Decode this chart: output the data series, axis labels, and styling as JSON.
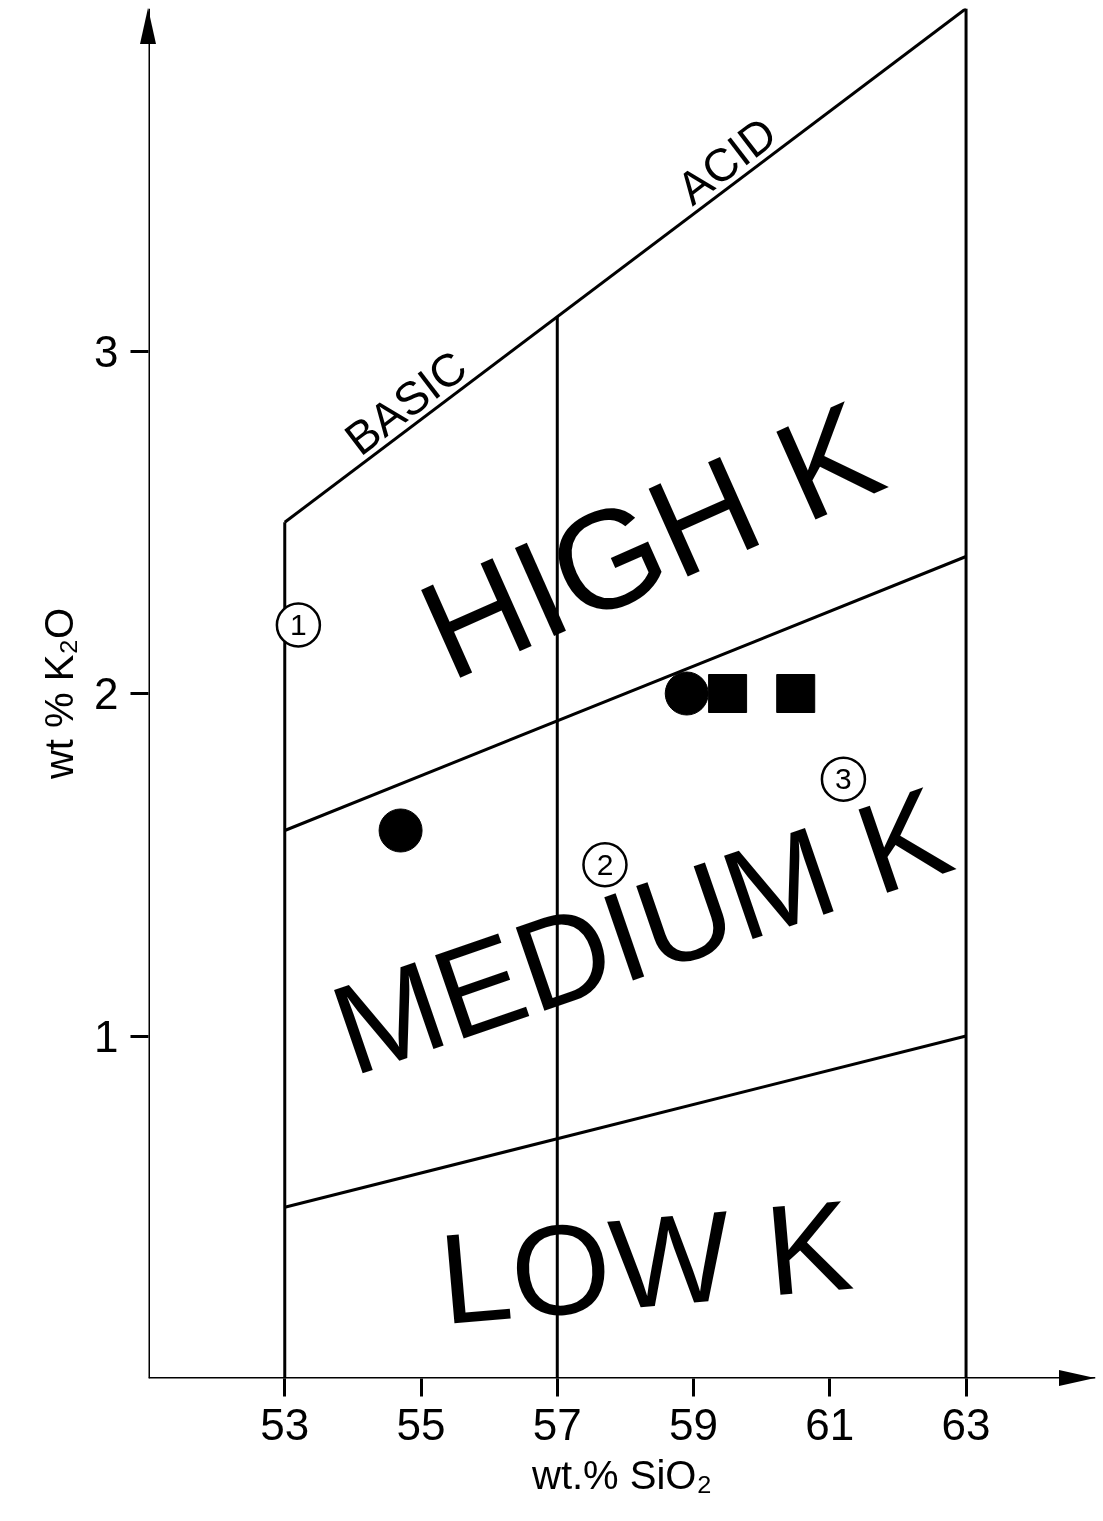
{
  "chart_data": {
    "type": "scatter",
    "xlabel": "wt.% SiO₂",
    "ylabel": "wt % K₂O",
    "xlim": [
      51,
      64.9
    ],
    "ylim": [
      0,
      4.0
    ],
    "xticks": [
      53,
      55,
      57,
      59,
      61,
      63
    ],
    "yticks": [
      1,
      2,
      3
    ],
    "grid": false,
    "series": [
      {
        "type": "line",
        "color": "#000000",
        "x": [
          53,
          63
        ],
        "values": [
          2.5,
          4.0
        ]
      },
      {
        "type": "line",
        "color": "#000000",
        "x": [
          53,
          63
        ],
        "values": [
          1.6,
          2.4
        ]
      },
      {
        "type": "line",
        "color": "#000000",
        "x": [
          53,
          63
        ],
        "values": [
          0.5,
          1.0
        ]
      },
      {
        "marker": "circle",
        "color": "#000000",
        "x": [
          54.7,
          58.9
        ],
        "values": [
          1.6,
          2.0
        ]
      },
      {
        "marker": "square",
        "color": "#000000",
        "x": [
          59.5,
          60.5
        ],
        "values": [
          2.0,
          2.0
        ]
      },
      {
        "marker": "circle",
        "color": "#000000",
        "x": [
          53.2,
          57.7,
          61.2
        ],
        "values": [
          2.2,
          1.5,
          1.75
        ]
      }
    ],
    "ref_lines": [
      {
        "axis": "x",
        "value": 53,
        "color": "#000000"
      },
      {
        "axis": "x",
        "value": 57,
        "color": "#000000"
      },
      {
        "axis": "x",
        "value": 63,
        "color": "#000000"
      }
    ],
    "annotations": [
      "BASIC",
      "ACID",
      "HIGH K",
      "MEDIUM K",
      "LOW K",
      {
        "text": "1",
        "x": 53.2,
        "y": 2.2
      },
      {
        "text": "2",
        "x": 57.7,
        "y": 1.5
      },
      {
        "text": "3",
        "x": 61.2,
        "y": 1.75
      }
    ]
  }
}
